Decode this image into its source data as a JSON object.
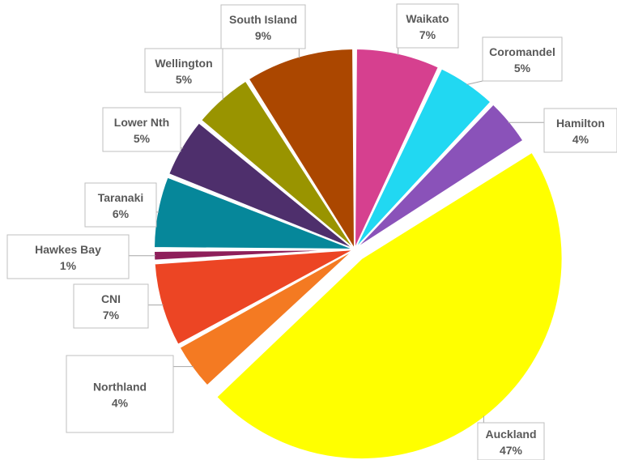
{
  "chart_data": {
    "type": "pie",
    "title": "",
    "legend": "none",
    "slices": [
      {
        "label": "Waikato",
        "value": 7,
        "pct_label": "7%",
        "color": "#d6408f"
      },
      {
        "label": "Coromandel",
        "value": 5,
        "pct_label": "5%",
        "color": "#21d8f2"
      },
      {
        "label": "Hamilton",
        "value": 4,
        "pct_label": "4%",
        "color": "#8a52b9"
      },
      {
        "label": "Auckland",
        "value": 47,
        "pct_label": "47%",
        "color": "#ffff00"
      },
      {
        "label": "Northland",
        "value": 4,
        "pct_label": "4%",
        "color": "#f47a22"
      },
      {
        "label": "CNI",
        "value": 7,
        "pct_label": "7%",
        "color": "#ec4524"
      },
      {
        "label": "Hawkes Bay",
        "value": 1,
        "pct_label": "1%",
        "color": "#8e1f5a"
      },
      {
        "label": "Taranaki",
        "value": 6,
        "pct_label": "6%",
        "color": "#06879a"
      },
      {
        "label": "Lower Nth",
        "value": 5,
        "pct_label": "5%",
        "color": "#4e2f6c"
      },
      {
        "label": "Wellington",
        "value": 5,
        "pct_label": "5%",
        "color": "#999400"
      },
      {
        "label": "South Island",
        "value": 9,
        "pct_label": "9%",
        "color": "#ab4700"
      }
    ]
  }
}
